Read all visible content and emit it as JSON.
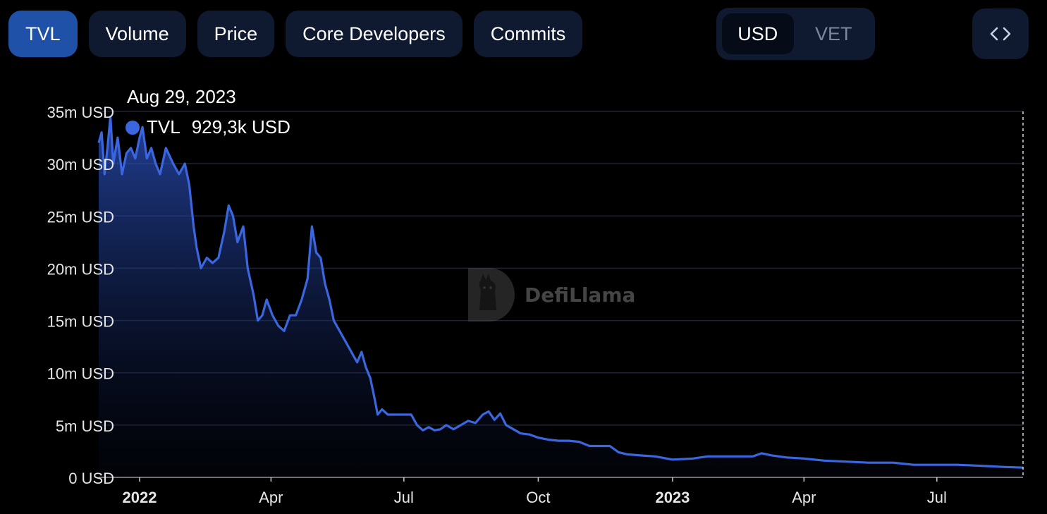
{
  "tabs": [
    {
      "label": "TVL",
      "active": true
    },
    {
      "label": "Volume",
      "active": false
    },
    {
      "label": "Price",
      "active": false
    },
    {
      "label": "Core Developers",
      "active": false
    },
    {
      "label": "Commits",
      "active": false
    }
  ],
  "currency": {
    "options": [
      "USD",
      "VET"
    ],
    "selected": "USD"
  },
  "embed_icon": "code-brackets-icon",
  "watermark": {
    "text": "DefiLlama",
    "icon": "llama-logo-icon"
  },
  "tooltip": {
    "date": "Aug 29, 2023",
    "series": "TVL",
    "value": "929,3k USD"
  },
  "colors": {
    "line": "#3a67e0",
    "tab_active": "#2051a8",
    "tab_inactive": "#0f1a30",
    "grid": "#1f2430"
  },
  "chart_data": {
    "type": "area",
    "x_label_ticks": [
      {
        "date": "2022-01-01",
        "label": "2022",
        "bold": true
      },
      {
        "date": "2022-04-01",
        "label": "Apr",
        "bold": false
      },
      {
        "date": "2022-07-01",
        "label": "Jul",
        "bold": false
      },
      {
        "date": "2022-10-01",
        "label": "Oct",
        "bold": false
      },
      {
        "date": "2023-01-01",
        "label": "2023",
        "bold": true
      },
      {
        "date": "2023-04-01",
        "label": "Apr",
        "bold": false
      },
      {
        "date": "2023-07-01",
        "label": "Jul",
        "bold": false
      }
    ],
    "y_ticks": [
      {
        "value": 0,
        "label": "0 USD"
      },
      {
        "value": 5,
        "label": "5m USD"
      },
      {
        "value": 10,
        "label": "10m USD"
      },
      {
        "value": 15,
        "label": "15m USD"
      },
      {
        "value": 20,
        "label": "20m USD"
      },
      {
        "value": 25,
        "label": "25m USD"
      },
      {
        "value": 30,
        "label": "30m USD"
      },
      {
        "value": 35,
        "label": "35m USD"
      }
    ],
    "ylim": [
      0,
      35
    ],
    "xlim": [
      "2021-12-04",
      "2023-08-29"
    ],
    "grid": true,
    "series": [
      {
        "name": "TVL",
        "points": [
          [
            "2021-12-04",
            32.0
          ],
          [
            "2021-12-06",
            33.0
          ],
          [
            "2021-12-08",
            29.0
          ],
          [
            "2021-12-10",
            31.5
          ],
          [
            "2021-12-12",
            34.5
          ],
          [
            "2021-12-14",
            30.0
          ],
          [
            "2021-12-17",
            32.5
          ],
          [
            "2021-12-20",
            29.0
          ],
          [
            "2021-12-23",
            31.0
          ],
          [
            "2021-12-26",
            31.5
          ],
          [
            "2021-12-29",
            30.5
          ],
          [
            "2022-01-01",
            32.5
          ],
          [
            "2022-01-03",
            33.5
          ],
          [
            "2022-01-06",
            30.5
          ],
          [
            "2022-01-09",
            31.5
          ],
          [
            "2022-01-12",
            30.0
          ],
          [
            "2022-01-15",
            29.0
          ],
          [
            "2022-01-19",
            31.5
          ],
          [
            "2022-01-24",
            30.0
          ],
          [
            "2022-01-28",
            29.0
          ],
          [
            "2022-02-01",
            30.0
          ],
          [
            "2022-02-04",
            28.0
          ],
          [
            "2022-02-07",
            24.0
          ],
          [
            "2022-02-09",
            22.0
          ],
          [
            "2022-02-12",
            20.0
          ],
          [
            "2022-02-16",
            21.0
          ],
          [
            "2022-02-20",
            20.5
          ],
          [
            "2022-02-24",
            21.0
          ],
          [
            "2022-02-28",
            23.5
          ],
          [
            "2022-03-03",
            26.0
          ],
          [
            "2022-03-06",
            25.0
          ],
          [
            "2022-03-09",
            22.5
          ],
          [
            "2022-03-13",
            24.0
          ],
          [
            "2022-03-16",
            20.0
          ],
          [
            "2022-03-20",
            17.5
          ],
          [
            "2022-03-23",
            15.0
          ],
          [
            "2022-03-26",
            15.5
          ],
          [
            "2022-03-29",
            17.0
          ],
          [
            "2022-04-02",
            15.5
          ],
          [
            "2022-04-06",
            14.5
          ],
          [
            "2022-04-10",
            14.0
          ],
          [
            "2022-04-14",
            15.5
          ],
          [
            "2022-04-18",
            15.5
          ],
          [
            "2022-04-22",
            17.0
          ],
          [
            "2022-04-26",
            19.0
          ],
          [
            "2022-04-29",
            24.0
          ],
          [
            "2022-05-02",
            21.5
          ],
          [
            "2022-05-05",
            21.0
          ],
          [
            "2022-05-08",
            18.5
          ],
          [
            "2022-05-11",
            17.0
          ],
          [
            "2022-05-14",
            15.0
          ],
          [
            "2022-05-18",
            14.0
          ],
          [
            "2022-05-22",
            13.0
          ],
          [
            "2022-05-26",
            12.0
          ],
          [
            "2022-05-30",
            11.0
          ],
          [
            "2022-06-02",
            12.0
          ],
          [
            "2022-06-05",
            10.5
          ],
          [
            "2022-06-08",
            9.5
          ],
          [
            "2022-06-11",
            7.5
          ],
          [
            "2022-06-13",
            6.0
          ],
          [
            "2022-06-16",
            6.5
          ],
          [
            "2022-06-20",
            6.0
          ],
          [
            "2022-06-25",
            6.0
          ],
          [
            "2022-07-01",
            6.0
          ],
          [
            "2022-07-06",
            6.0
          ],
          [
            "2022-07-10",
            5.0
          ],
          [
            "2022-07-14",
            4.5
          ],
          [
            "2022-07-18",
            4.8
          ],
          [
            "2022-07-22",
            4.5
          ],
          [
            "2022-07-26",
            4.6
          ],
          [
            "2022-07-30",
            5.0
          ],
          [
            "2022-08-04",
            4.6
          ],
          [
            "2022-08-09",
            5.0
          ],
          [
            "2022-08-14",
            5.4
          ],
          [
            "2022-08-19",
            5.2
          ],
          [
            "2022-08-24",
            6.0
          ],
          [
            "2022-08-28",
            6.3
          ],
          [
            "2022-09-01",
            5.5
          ],
          [
            "2022-09-05",
            6.1
          ],
          [
            "2022-09-09",
            5.0
          ],
          [
            "2022-09-14",
            4.6
          ],
          [
            "2022-09-19",
            4.2
          ],
          [
            "2022-09-25",
            4.1
          ],
          [
            "2022-10-01",
            3.8
          ],
          [
            "2022-10-08",
            3.6
          ],
          [
            "2022-10-15",
            3.5
          ],
          [
            "2022-10-22",
            3.5
          ],
          [
            "2022-10-29",
            3.4
          ],
          [
            "2022-11-05",
            3.0
          ],
          [
            "2022-11-12",
            3.0
          ],
          [
            "2022-11-19",
            3.0
          ],
          [
            "2022-11-25",
            2.4
          ],
          [
            "2022-12-01",
            2.2
          ],
          [
            "2022-12-10",
            2.1
          ],
          [
            "2022-12-20",
            2.0
          ],
          [
            "2023-01-01",
            1.7
          ],
          [
            "2023-01-15",
            1.8
          ],
          [
            "2023-01-25",
            2.0
          ],
          [
            "2023-02-10",
            2.0
          ],
          [
            "2023-02-25",
            2.0
          ],
          [
            "2023-03-03",
            2.3
          ],
          [
            "2023-03-10",
            2.1
          ],
          [
            "2023-03-20",
            1.9
          ],
          [
            "2023-04-01",
            1.8
          ],
          [
            "2023-04-15",
            1.6
          ],
          [
            "2023-05-01",
            1.5
          ],
          [
            "2023-05-15",
            1.4
          ],
          [
            "2023-06-01",
            1.4
          ],
          [
            "2023-06-15",
            1.2
          ],
          [
            "2023-07-01",
            1.2
          ],
          [
            "2023-07-15",
            1.2
          ],
          [
            "2023-08-01",
            1.1
          ],
          [
            "2023-08-15",
            1.0
          ],
          [
            "2023-08-29",
            0.93
          ]
        ]
      }
    ]
  }
}
